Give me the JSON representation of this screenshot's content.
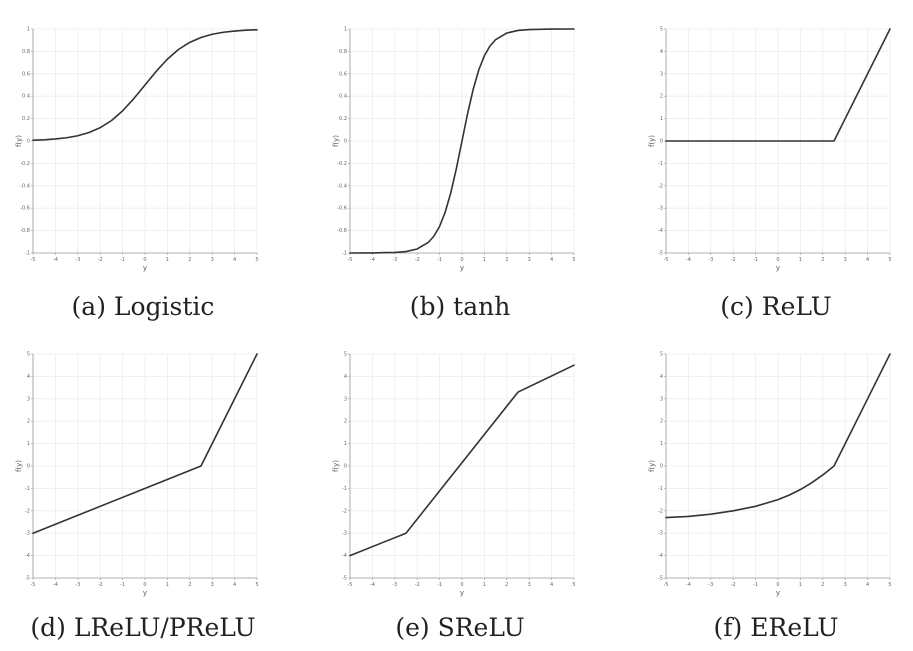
{
  "colors": {
    "line": "#333333",
    "grid": "#ececec",
    "axis": "#9a9a9a",
    "text": "#222222"
  },
  "chart_data": [
    {
      "type": "line",
      "id": "a",
      "caption": "(a) Logistic",
      "xlabel": "y",
      "ylabel": "f(y)",
      "xlim": [
        -5,
        5
      ],
      "ylim": [
        -1,
        1
      ],
      "grid": true,
      "series": [
        {
          "name": "Logistic",
          "x": [
            -5,
            -4.5,
            -4,
            -3.5,
            -3,
            -2.5,
            -2,
            -1.5,
            -1,
            -0.5,
            0,
            0.5,
            1,
            1.5,
            2,
            2.5,
            3,
            3.5,
            4,
            4.5,
            5
          ],
          "y": [
            0.007,
            0.011,
            0.018,
            0.029,
            0.047,
            0.076,
            0.119,
            0.182,
            0.269,
            0.378,
            0.5,
            0.622,
            0.731,
            0.818,
            0.881,
            0.924,
            0.953,
            0.971,
            0.982,
            0.989,
            0.993
          ]
        }
      ]
    },
    {
      "type": "line",
      "id": "b",
      "caption": "(b) tanh",
      "xlabel": "y",
      "ylabel": "f(y)",
      "xlim": [
        -5,
        5
      ],
      "ylim": [
        -1,
        1
      ],
      "grid": true,
      "series": [
        {
          "name": "tanh",
          "x": [
            -5,
            -4,
            -3,
            -2.5,
            -2,
            -1.5,
            -1.25,
            -1,
            -0.75,
            -0.5,
            -0.25,
            0,
            0.25,
            0.5,
            0.75,
            1,
            1.25,
            1.5,
            2,
            2.5,
            3,
            4,
            5
          ],
          "y": [
            -0.9999,
            -0.9993,
            -0.995,
            -0.987,
            -0.964,
            -0.905,
            -0.848,
            -0.762,
            -0.635,
            -0.462,
            -0.245,
            0,
            0.245,
            0.462,
            0.635,
            0.762,
            0.848,
            0.905,
            0.964,
            0.987,
            0.995,
            0.9993,
            0.9999
          ]
        }
      ]
    },
    {
      "type": "line",
      "id": "c",
      "caption": "(c) ReLU",
      "xlabel": "y",
      "ylabel": "f(y)",
      "xlim": [
        -5,
        5
      ],
      "ylim": [
        -5,
        5
      ],
      "grid": true,
      "series": [
        {
          "name": "ReLU",
          "x": [
            -5,
            2.5,
            5
          ],
          "y": [
            0,
            0,
            5
          ]
        }
      ]
    },
    {
      "type": "line",
      "id": "d",
      "caption": "(d) LReLU/PReLU",
      "xlabel": "y",
      "ylabel": "f(y)",
      "xlim": [
        -5,
        5
      ],
      "ylim": [
        -5,
        5
      ],
      "grid": true,
      "series": [
        {
          "name": "LReLU/PReLU",
          "x": [
            -5,
            2.5,
            5
          ],
          "y": [
            -3,
            0,
            5
          ]
        }
      ]
    },
    {
      "type": "line",
      "id": "e",
      "caption": "(e) SReLU",
      "xlabel": "y",
      "ylabel": "f(y)",
      "xlim": [
        -5,
        5
      ],
      "ylim": [
        -5,
        5
      ],
      "grid": true,
      "series": [
        {
          "name": "SReLU",
          "x": [
            -5,
            -2.5,
            2.5,
            5
          ],
          "y": [
            -4,
            -3,
            3.3,
            4.5
          ]
        }
      ]
    },
    {
      "type": "line",
      "id": "f",
      "caption": "(f) EReLU",
      "xlabel": "y",
      "ylabel": "f(y)",
      "xlim": [
        -5,
        5
      ],
      "ylim": [
        -5,
        5
      ],
      "grid": true,
      "series": [
        {
          "name": "EReLU",
          "x": [
            -5,
            -4,
            -3,
            -2,
            -1,
            0,
            0.5,
            1,
            1.5,
            2,
            2.5,
            3,
            4,
            5
          ],
          "y": [
            -2.3,
            -2.25,
            -2.15,
            -2.0,
            -1.8,
            -1.5,
            -1.3,
            -1.05,
            -0.75,
            -0.4,
            0,
            1.0,
            3.0,
            5.0
          ]
        }
      ]
    }
  ]
}
